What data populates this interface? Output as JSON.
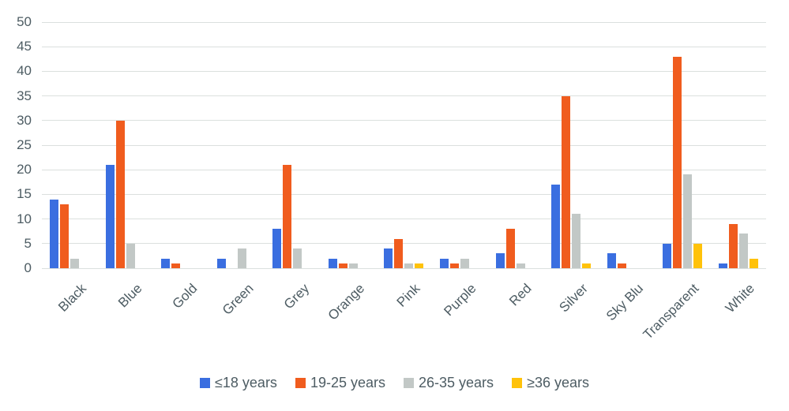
{
  "chart_data": {
    "type": "bar",
    "title": "",
    "categories": [
      "Black",
      "Blue",
      "Gold",
      "Green",
      "Grey",
      "Orange",
      "Pink",
      "Purple",
      "Red",
      "Silver",
      "Sky Blu",
      "Transparent",
      "White"
    ],
    "series": [
      {
        "name": "≤18 years",
        "color": "#3a6ee0",
        "values": [
          14,
          21,
          2,
          2,
          8,
          2,
          4,
          2,
          3,
          17,
          3,
          5,
          1
        ]
      },
      {
        "name": "19-25 years",
        "color": "#f05c1e",
        "values": [
          13,
          30,
          1,
          0,
          21,
          1,
          6,
          1,
          8,
          35,
          1,
          43,
          9
        ]
      },
      {
        "name": "26-35 years",
        "color": "#c2c8c6",
        "values": [
          2,
          5,
          0,
          4,
          4,
          1,
          1,
          2,
          1,
          11,
          0,
          19,
          7
        ]
      },
      {
        "name": "≥36 years",
        "color": "#ffc20a",
        "values": [
          0,
          0,
          0,
          0,
          0,
          0,
          1,
          0,
          0,
          1,
          0,
          5,
          2
        ]
      }
    ],
    "y_axis": {
      "min": 0,
      "max": 50,
      "step": 5,
      "tick_labels": [
        "0",
        "5",
        "10",
        "15",
        "20",
        "25",
        "30",
        "35",
        "40",
        "45",
        "50"
      ]
    },
    "xlabel": "",
    "ylabel": "",
    "grid": true,
    "legend_position": "bottom"
  },
  "style": {
    "text_color": "#4d5c63",
    "gridline_color": "#dbe0de",
    "background": "#ffffff"
  }
}
